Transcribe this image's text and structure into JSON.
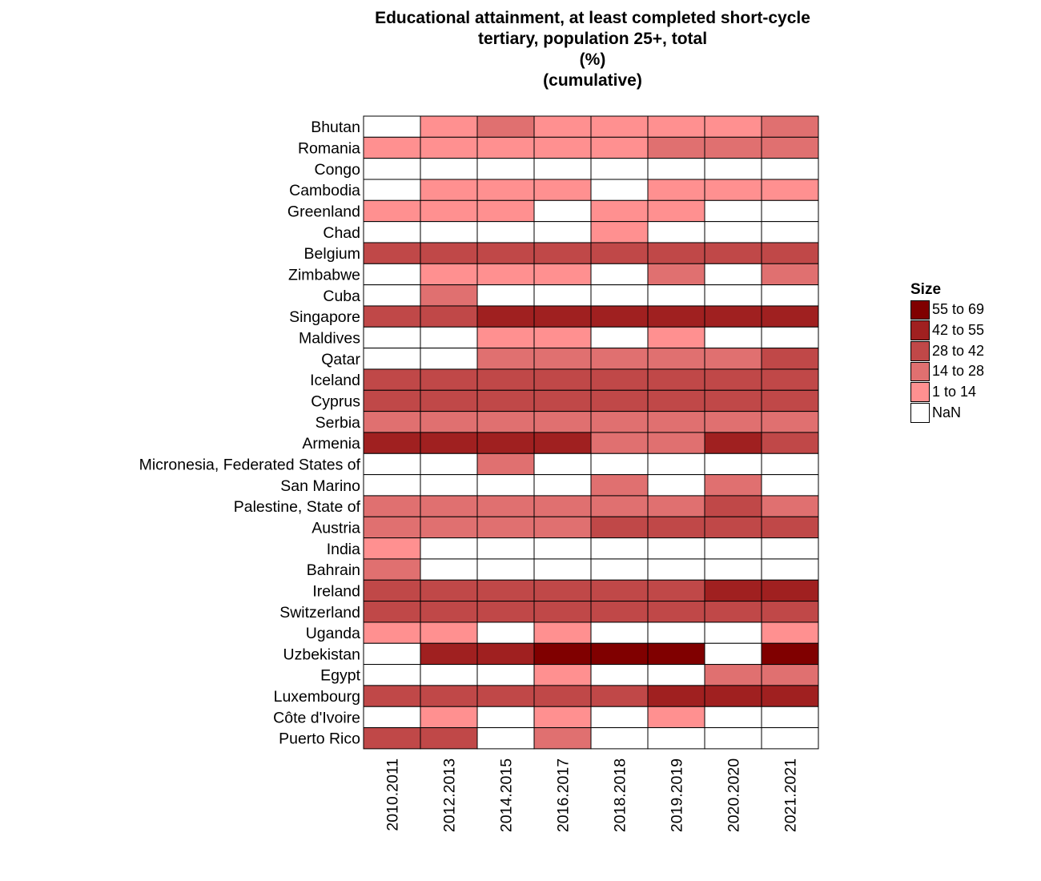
{
  "chart_data": {
    "type": "heatmap",
    "title": "Educational attainment, at least completed short-cycle tertiary, population 25+, total",
    "title_lines": [
      "Educational attainment, at least completed short-cycle",
      "tertiary, population 25+, total",
      "(%)",
      "(cumulative)"
    ],
    "x_categories": [
      "2010.2011",
      "2012.2013",
      "2014.2015",
      "2016.2017",
      "2018.2018",
      "2019.2019",
      "2020.2020",
      "2021.2021"
    ],
    "y_categories": [
      "Bhutan",
      "Romania",
      "Congo",
      "Cambodia",
      "Greenland",
      "Chad",
      "Belgium",
      "Zimbabwe",
      "Cuba",
      "Singapore",
      "Maldives",
      "Qatar",
      "Iceland",
      "Cyprus",
      "Serbia",
      "Armenia",
      "Micronesia, Federated States of",
      "San Marino",
      "Palestine, State of",
      "Austria",
      "India",
      "Bahrain",
      "Ireland",
      "Switzerland",
      "Uganda",
      "Uzbekistan",
      "Egypt",
      "Luxembourg",
      "Côte d'Ivoire",
      "Puerto Rico"
    ],
    "legend_title": "Size",
    "legend": [
      {
        "label": "55 to 69",
        "color": "#800000"
      },
      {
        "label": "42 to 55",
        "color": "#a02020"
      },
      {
        "label": "28 to 42",
        "color": "#c04848"
      },
      {
        "label": "14 to 28",
        "color": "#e07070"
      },
      {
        "label": "1 to 14",
        "color": "#ff9090"
      },
      {
        "label": "NaN",
        "color": "#ffffff"
      }
    ],
    "bin_colors": [
      "#ffffff",
      "#ff9090",
      "#e07070",
      "#c04848",
      "#a02020",
      "#800000"
    ],
    "bins_note": "cell value = legend bin index: 0=NaN, 1=1 to 14, 2=14 to 28, 3=28 to 42, 4=42 to 55, 5=55 to 69",
    "bins": [
      [
        0,
        1,
        2,
        1,
        1,
        1,
        1,
        2
      ],
      [
        1,
        1,
        1,
        1,
        1,
        2,
        2,
        2
      ],
      [
        0,
        0,
        0,
        0,
        0,
        0,
        0,
        0
      ],
      [
        0,
        1,
        1,
        1,
        0,
        1,
        1,
        1
      ],
      [
        1,
        1,
        1,
        0,
        1,
        1,
        0,
        0
      ],
      [
        0,
        0,
        0,
        0,
        1,
        0,
        0,
        0
      ],
      [
        3,
        3,
        3,
        3,
        3,
        3,
        3,
        3
      ],
      [
        0,
        1,
        1,
        1,
        0,
        2,
        0,
        2
      ],
      [
        0,
        2,
        0,
        0,
        0,
        0,
        0,
        0
      ],
      [
        3,
        3,
        4,
        4,
        4,
        4,
        4,
        4
      ],
      [
        0,
        0,
        1,
        1,
        0,
        1,
        0,
        0
      ],
      [
        0,
        0,
        2,
        2,
        2,
        2,
        2,
        3
      ],
      [
        3,
        3,
        3,
        3,
        3,
        3,
        3,
        3
      ],
      [
        3,
        3,
        3,
        3,
        3,
        3,
        3,
        3
      ],
      [
        2,
        2,
        2,
        2,
        2,
        2,
        2,
        2
      ],
      [
        4,
        4,
        4,
        4,
        2,
        2,
        4,
        3
      ],
      [
        0,
        0,
        2,
        0,
        0,
        0,
        0,
        0
      ],
      [
        0,
        0,
        0,
        0,
        2,
        0,
        2,
        0
      ],
      [
        2,
        2,
        2,
        2,
        2,
        2,
        3,
        2
      ],
      [
        2,
        2,
        2,
        2,
        3,
        3,
        3,
        3
      ],
      [
        1,
        0,
        0,
        0,
        0,
        0,
        0,
        0
      ],
      [
        2,
        0,
        0,
        0,
        0,
        0,
        0,
        0
      ],
      [
        3,
        3,
        3,
        3,
        3,
        3,
        4,
        4
      ],
      [
        3,
        3,
        3,
        3,
        3,
        3,
        3,
        3
      ],
      [
        1,
        1,
        0,
        1,
        0,
        0,
        0,
        1
      ],
      [
        0,
        4,
        4,
        5,
        5,
        5,
        0,
        5
      ],
      [
        0,
        0,
        0,
        1,
        0,
        0,
        2,
        2
      ],
      [
        3,
        3,
        3,
        3,
        3,
        4,
        4,
        4
      ],
      [
        0,
        1,
        0,
        1,
        0,
        1,
        0,
        0
      ],
      [
        3,
        3,
        0,
        2,
        0,
        0,
        0,
        0
      ]
    ]
  }
}
